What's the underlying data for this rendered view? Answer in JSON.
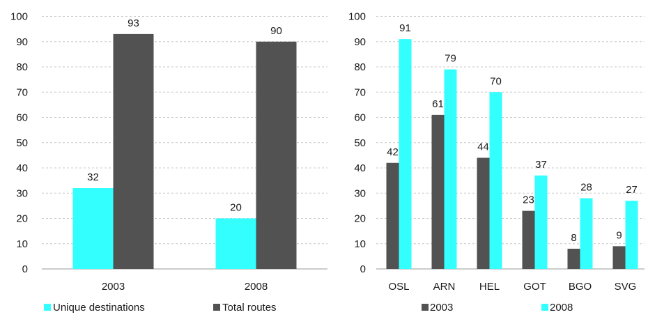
{
  "chart_data": [
    {
      "type": "bar",
      "categories": [
        "2003",
        "2008"
      ],
      "series": [
        {
          "name": "Unique destinations",
          "values": [
            32,
            20
          ],
          "color": "#33ffff"
        },
        {
          "name": "Total routes",
          "values": [
            93,
            90
          ],
          "color": "#525252"
        }
      ],
      "ylim": [
        0,
        100
      ],
      "yticks": [
        "0",
        "10",
        "20",
        "30",
        "40",
        "50",
        "60",
        "70",
        "80",
        "90",
        "100"
      ],
      "grid": true,
      "legend": "bottom"
    },
    {
      "type": "bar",
      "categories": [
        "OSL",
        "ARN",
        "HEL",
        "GOT",
        "BGO",
        "SVG"
      ],
      "series": [
        {
          "name": "2003",
          "values": [
            42,
            61,
            44,
            23,
            8,
            9
          ],
          "color": "#525252"
        },
        {
          "name": "2008",
          "values": [
            91,
            79,
            70,
            37,
            28,
            27
          ],
          "color": "#33ffff"
        }
      ],
      "ylim": [
        0,
        100
      ],
      "yticks": [
        "0",
        "10",
        "20",
        "30",
        "40",
        "50",
        "60",
        "70",
        "80",
        "90",
        "100"
      ],
      "grid": true,
      "legend": "bottom"
    }
  ]
}
